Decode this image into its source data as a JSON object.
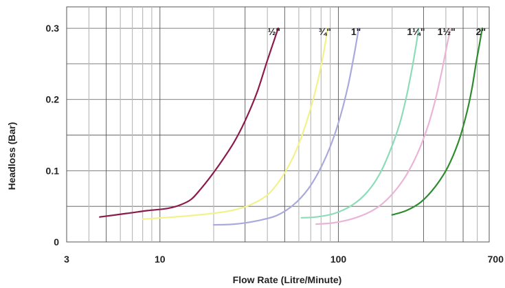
{
  "chart_data": {
    "type": "line",
    "title": "",
    "xlabel": "Flow Rate (Litre/Minute)",
    "ylabel": "Headloss (Bar)",
    "x_scale": "log",
    "xlim": [
      3,
      700
    ],
    "ylim": [
      0,
      0.33
    ],
    "x_ticks": [
      {
        "value": 3,
        "label": "3"
      },
      {
        "value": 10,
        "label": "10"
      },
      {
        "value": 100,
        "label": "100"
      },
      {
        "value": 700,
        "label": "700"
      }
    ],
    "y_ticks": [
      {
        "value": 0,
        "label": "0"
      },
      {
        "value": 0.1,
        "label": "0.1"
      },
      {
        "value": 0.2,
        "label": "0.2"
      },
      {
        "value": 0.3,
        "label": "0.3"
      }
    ],
    "grid": true,
    "series": [
      {
        "name": "½\"",
        "color": "#8b1a4a",
        "x": [
          4.6,
          6.5,
          8.5,
          11,
          13,
          15,
          17,
          19,
          22,
          26,
          30,
          35,
          40,
          46
        ],
        "y": [
          0.035,
          0.04,
          0.044,
          0.047,
          0.052,
          0.06,
          0.075,
          0.09,
          0.112,
          0.14,
          0.17,
          0.21,
          0.255,
          0.3
        ]
      },
      {
        "name": "¾\"",
        "color": "#f2f28a",
        "x": [
          8,
          12,
          18,
          25,
          32,
          40,
          48,
          56,
          63,
          70,
          77,
          83,
          87
        ],
        "y": [
          0.032,
          0.035,
          0.039,
          0.044,
          0.052,
          0.066,
          0.09,
          0.12,
          0.152,
          0.188,
          0.228,
          0.268,
          0.3
        ]
      },
      {
        "name": "1\"",
        "color": "#a9a9dd",
        "x": [
          20,
          26,
          34,
          45,
          56,
          68,
          80,
          92,
          103,
          113,
          122,
          130
        ],
        "y": [
          0.024,
          0.025,
          0.029,
          0.037,
          0.052,
          0.075,
          0.105,
          0.14,
          0.178,
          0.218,
          0.26,
          0.3
        ]
      },
      {
        "name": "1¼\"",
        "color": "#8cdcb8",
        "x": [
          62,
          75,
          95,
          120,
          145,
          170,
          195,
          220,
          240,
          258,
          272,
          282
        ],
        "y": [
          0.034,
          0.035,
          0.04,
          0.052,
          0.07,
          0.095,
          0.128,
          0.165,
          0.203,
          0.242,
          0.275,
          0.3
        ]
      },
      {
        "name": "1½\"",
        "color": "#eab4d6",
        "x": [
          75,
          95,
          125,
          160,
          195,
          235,
          275,
          315,
          350,
          380,
          405,
          425
        ],
        "y": [
          0.025,
          0.027,
          0.034,
          0.046,
          0.064,
          0.09,
          0.122,
          0.16,
          0.2,
          0.24,
          0.275,
          0.3
        ]
      },
      {
        "name": "2\"",
        "color": "#2e8b2e",
        "x": [
          200,
          240,
          290,
          350,
          410,
          470,
          520,
          560,
          590,
          620,
          640
        ],
        "y": [
          0.038,
          0.044,
          0.056,
          0.078,
          0.105,
          0.14,
          0.178,
          0.215,
          0.25,
          0.28,
          0.3
        ]
      }
    ],
    "series_labels": [
      "½\"",
      "¾\"",
      "1\"",
      "1¼\"",
      "1½\"",
      "2\""
    ]
  },
  "colors": {
    "grid_major": "#555555",
    "grid_minor": "#bbbbbb",
    "background": "#ffffff"
  }
}
